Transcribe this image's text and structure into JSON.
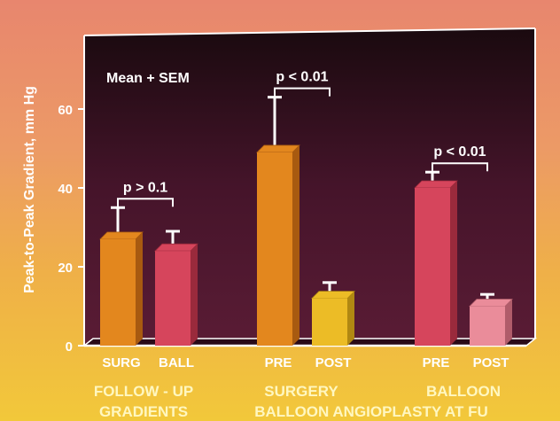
{
  "chart_data": {
    "type": "bar",
    "ylabel": "Peak-to-Peak Gradient, mm Hg",
    "ylim": [
      0,
      70
    ],
    "yticks": [
      "0",
      "20",
      "40",
      "60"
    ],
    "legend_text": "Mean + SEM",
    "bars": [
      {
        "label": "SURG",
        "value": 27,
        "sem": 8,
        "color": "#e3871e",
        "side": "#a85a10"
      },
      {
        "label": "BALL",
        "value": 24,
        "sem": 5,
        "color": "#d6455c",
        "side": "#9a2a3c"
      },
      {
        "label": "PRE",
        "value": 49,
        "sem": 14,
        "color": "#e3871e",
        "side": "#a85a10"
      },
      {
        "label": "POST",
        "value": 12,
        "sem": 4,
        "color": "#ecbc26",
        "side": "#b08812"
      },
      {
        "label": "PRE",
        "value": 40,
        "sem": 4,
        "color": "#d6455c",
        "side": "#9a2a3c"
      },
      {
        "label": "POST",
        "value": 10,
        "sem": 3,
        "color": "#ea8c9a",
        "side": "#b05c6a"
      }
    ],
    "groups": [
      {
        "line1": "FOLLOW - UP",
        "line2": "GRADIENTS",
        "p_value": "p > 0.1"
      },
      {
        "line1": "SURGERY",
        "line2": "BALLOON ANGIOPLASTY  AT FU",
        "p_value": "p < 0.01"
      },
      {
        "line1": "BALLOON",
        "line2": "",
        "p_value": "p < 0.01"
      }
    ]
  }
}
